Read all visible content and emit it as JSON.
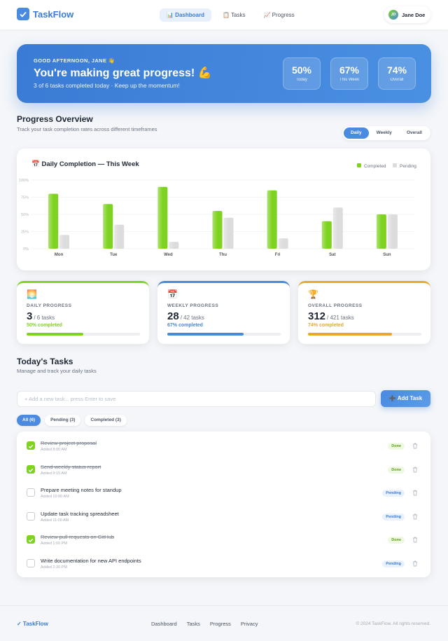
{
  "nav": {
    "logo": "TaskFlow",
    "links": [
      "📊 Dashboard",
      "📋 Tasks",
      "📈 Progress"
    ],
    "user_initials": "JD",
    "user_name": "Jane Doe"
  },
  "hero": {
    "greeting": "GOOD AFTERNOON, JANE 👋",
    "title": "You're making great progress! 💪",
    "subtitle": "3 of 6 tasks completed today · Keep up the momentum!",
    "stats": [
      {
        "value": "50%",
        "label": "Today"
      },
      {
        "value": "67%",
        "label": "This Week"
      },
      {
        "value": "74%",
        "label": "Overall"
      }
    ]
  },
  "overview": {
    "title": "Progress Overview",
    "subtitle": "Track your task completion rates across different timeframes",
    "tabs": [
      "Daily",
      "Weekly",
      "Overall"
    ]
  },
  "chart_data": {
    "type": "bar",
    "title": "📅 Daily Completion — This Week",
    "categories": [
      "Mon",
      "Tue",
      "Wed",
      "Thu",
      "Fri",
      "Sat",
      "Sun"
    ],
    "series": [
      {
        "name": "Completed",
        "color": "#7ed321",
        "values": [
          80,
          65,
          90,
          55,
          85,
          40,
          50
        ]
      },
      {
        "name": "Pending",
        "color": "#dcdcdc",
        "values": [
          20,
          35,
          10,
          45,
          15,
          60,
          50
        ]
      }
    ],
    "ylim": [
      0,
      100
    ],
    "yticks": [
      {
        "value": 0,
        "label": "0%"
      },
      {
        "value": 25,
        "label": "25%"
      },
      {
        "value": 50,
        "label": "50%"
      },
      {
        "value": 75,
        "label": "75%"
      },
      {
        "value": 100,
        "label": "100%"
      }
    ],
    "grid": true,
    "legend": "top-right"
  },
  "cards": [
    {
      "icon": "🌅",
      "label": "DAILY PROGRESS",
      "done": "3",
      "total": "/ 6 tasks",
      "percent": 50,
      "percent_label": "50% completed",
      "color": "#7ed321"
    },
    {
      "icon": "📅",
      "label": "WEEKLY PROGRESS",
      "done": "28",
      "total": "/ 42 tasks",
      "percent": 67,
      "percent_label": "67% completed",
      "color": "#4a8ad4"
    },
    {
      "icon": "🏆",
      "label": "OVERALL PROGRESS",
      "done": "312",
      "total": "/ 421 tasks",
      "percent": 74,
      "percent_label": "74% completed",
      "color": "#e6a92a"
    }
  ],
  "tasks_section": {
    "title": "Today's Tasks",
    "subtitle": "Manage and track your daily tasks",
    "placeholder": "+ Add a new task... press Enter to save",
    "add_button": "➕ Add Task",
    "filters": [
      "All (6)",
      "Pending (3)",
      "Completed (3)"
    ]
  },
  "tasks": [
    {
      "title": "Review project proposal",
      "time": "Added 8:00 AM",
      "done": true,
      "status": "Done"
    },
    {
      "title": "Send weekly status report",
      "time": "Added 9:15 AM",
      "done": true,
      "status": "Done"
    },
    {
      "title": "Prepare meeting notes for standup",
      "time": "Added 10:00 AM",
      "done": false,
      "status": "Pending"
    },
    {
      "title": "Update task tracking spreadsheet",
      "time": "Added 11:00 AM",
      "done": false,
      "status": "Pending"
    },
    {
      "title": "Review pull requests on GitHub",
      "time": "Added 1:00 PM",
      "done": true,
      "status": "Done"
    },
    {
      "title": "Write documentation for new API endpoints",
      "time": "Added 2:30 PM",
      "done": false,
      "status": "Pending"
    }
  ],
  "footer": {
    "logo": "✓ TaskFlow",
    "links": [
      "Dashboard",
      "Tasks",
      "Progress",
      "Privacy"
    ],
    "copyright": "© 2024 TaskFlow. All rights reserved."
  }
}
